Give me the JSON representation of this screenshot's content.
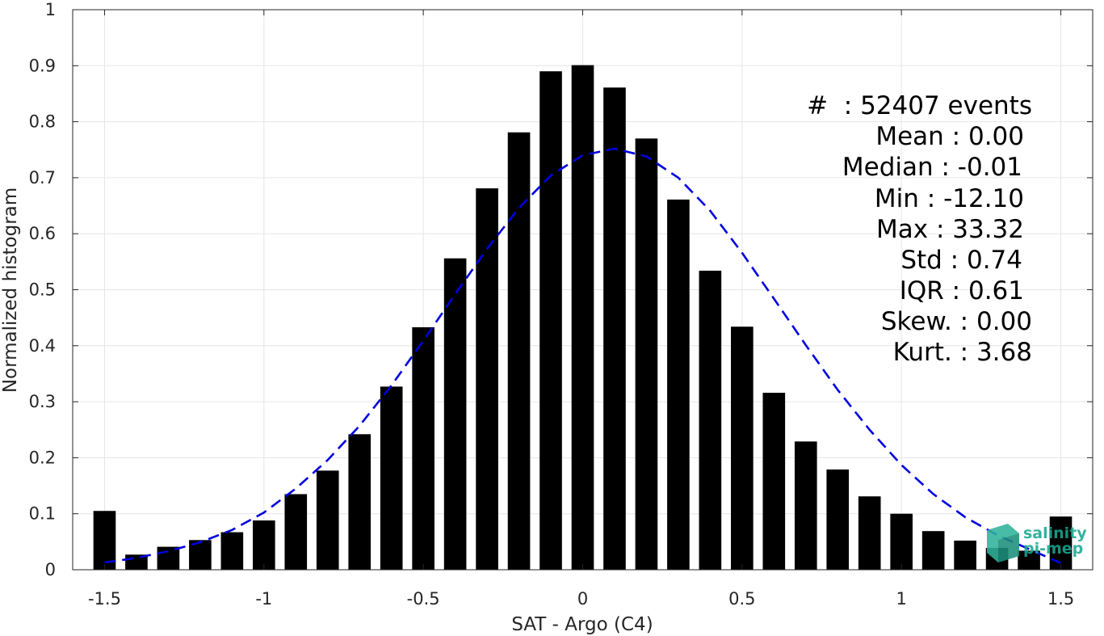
{
  "chart_data": {
    "type": "bar",
    "xlabel": "SAT - Argo (C4)",
    "ylabel": "Normalized histogram",
    "xlim": [
      -1.6,
      1.6
    ],
    "ylim": [
      0,
      1
    ],
    "x_ticks": [
      "-1.5",
      "-1",
      "-0.5",
      "0",
      "0.5",
      "1",
      "1.5"
    ],
    "x_tick_values": [
      -1.5,
      -1,
      -0.5,
      0,
      0.5,
      1,
      1.5
    ],
    "y_ticks": [
      "0",
      "0.1",
      "0.2",
      "0.3",
      "0.4",
      "0.5",
      "0.6",
      "0.7",
      "0.8",
      "0.9",
      "1"
    ],
    "y_tick_values": [
      0,
      0.1,
      0.2,
      0.3,
      0.4,
      0.5,
      0.6,
      0.7,
      0.8,
      0.9,
      1
    ],
    "grid": true,
    "bar_color": "#000000",
    "fit_color": "#0000e0",
    "x": [
      -1.5,
      -1.4,
      -1.3,
      -1.2,
      -1.1,
      -1.0,
      -0.9,
      -0.8,
      -0.7,
      -0.6,
      -0.5,
      -0.4,
      -0.3,
      -0.2,
      -0.1,
      0.0,
      0.1,
      0.2,
      0.3,
      0.4,
      0.5,
      0.6,
      0.7,
      0.8,
      0.9,
      1.0,
      1.1,
      1.2,
      1.3,
      1.4,
      1.5
    ],
    "values": [
      0.105,
      0.027,
      0.041,
      0.053,
      0.067,
      0.088,
      0.135,
      0.177,
      0.242,
      0.327,
      0.433,
      0.556,
      0.681,
      0.781,
      0.89,
      0.901,
      0.861,
      0.77,
      0.661,
      0.534,
      0.434,
      0.316,
      0.229,
      0.179,
      0.131,
      0.1,
      0.069,
      0.052,
      0.039,
      0.034,
      0.095
    ],
    "fit_curve": {
      "style": "dashed",
      "x": [
        -1.5,
        -1.4,
        -1.3,
        -1.2,
        -1.1,
        -1.0,
        -0.9,
        -0.8,
        -0.7,
        -0.6,
        -0.5,
        -0.4,
        -0.3,
        -0.2,
        -0.1,
        0.0,
        0.1,
        0.2,
        0.3,
        0.4,
        0.5,
        0.6,
        0.7,
        0.8,
        0.9,
        1.0,
        1.1,
        1.2,
        1.3,
        1.4,
        1.5
      ],
      "y": [
        0.013,
        0.021,
        0.033,
        0.049,
        0.071,
        0.102,
        0.145,
        0.196,
        0.257,
        0.329,
        0.409,
        0.492,
        0.573,
        0.646,
        0.704,
        0.74,
        0.752,
        0.738,
        0.7,
        0.641,
        0.566,
        0.484,
        0.401,
        0.321,
        0.25,
        0.187,
        0.135,
        0.094,
        0.062,
        0.037,
        0.012
      ]
    },
    "annotations": [
      "#  : 52407 events",
      "Mean : 0.00",
      "Median : -0.01",
      "Min : -12.10",
      "Max : 33.32",
      "Std : 0.74",
      "IQR : 0.61",
      "Skew. : 0.00",
      "Kurt. : 3.68"
    ]
  },
  "logo": {
    "line1": "salinity",
    "line2": "pi-mep",
    "color": "#19a890"
  }
}
